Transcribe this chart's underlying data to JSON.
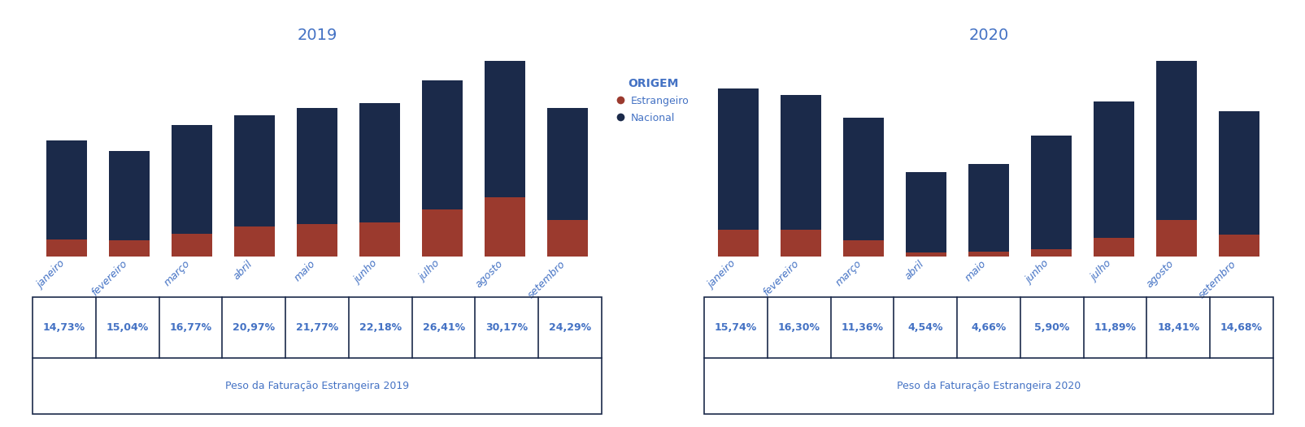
{
  "months": [
    "janeiro",
    "fevereiro",
    "março",
    "abril",
    "maio",
    "junho",
    "julho",
    "agosto",
    "setembro"
  ],
  "color_estrangeiro": "#9B3A2E",
  "color_nacional": "#1B2A4A",
  "title_2019": "2019",
  "title_2020": "2020",
  "legend_title": "ORIGEM",
  "legend_estrangeiro": "Estrangeiro",
  "legend_nacional": "Nacional",
  "table_label_2019": "Peso da Faturação Estrangeira 2019",
  "table_label_2020": "Peso da Faturação Estrangeira 2020",
  "pct_2019": [
    14.73,
    15.04,
    16.77,
    20.97,
    21.77,
    22.18,
    26.41,
    30.17,
    24.29
  ],
  "pct_2020": [
    15.74,
    16.3,
    11.36,
    4.54,
    4.66,
    5.9,
    11.89,
    18.41,
    14.68
  ],
  "pct_labels_2019": [
    "14,73%",
    "15,04%",
    "16,77%",
    "20,97%",
    "21,77%",
    "22,18%",
    "26,41%",
    "30,17%",
    "24,29%"
  ],
  "pct_labels_2020": [
    "15,74%",
    "16,30%",
    "11,36%",
    "4,54%",
    "4,66%",
    "5,90%",
    "11,89%",
    "18,41%",
    "14,68%"
  ],
  "total_2019": [
    470,
    430,
    535,
    575,
    605,
    625,
    715,
    795,
    605
  ],
  "total_2020": [
    520,
    500,
    430,
    260,
    285,
    375,
    480,
    605,
    450
  ],
  "background_color": "#ffffff",
  "title_color": "#4472C4",
  "axis_label_color": "#4472C4",
  "table_border_color": "#1B2A4A",
  "title_fontsize": 14,
  "tick_fontsize": 9,
  "legend_title_fontsize": 10,
  "legend_fontsize": 9,
  "table_pct_fontsize": 9,
  "table_label_fontsize": 9
}
